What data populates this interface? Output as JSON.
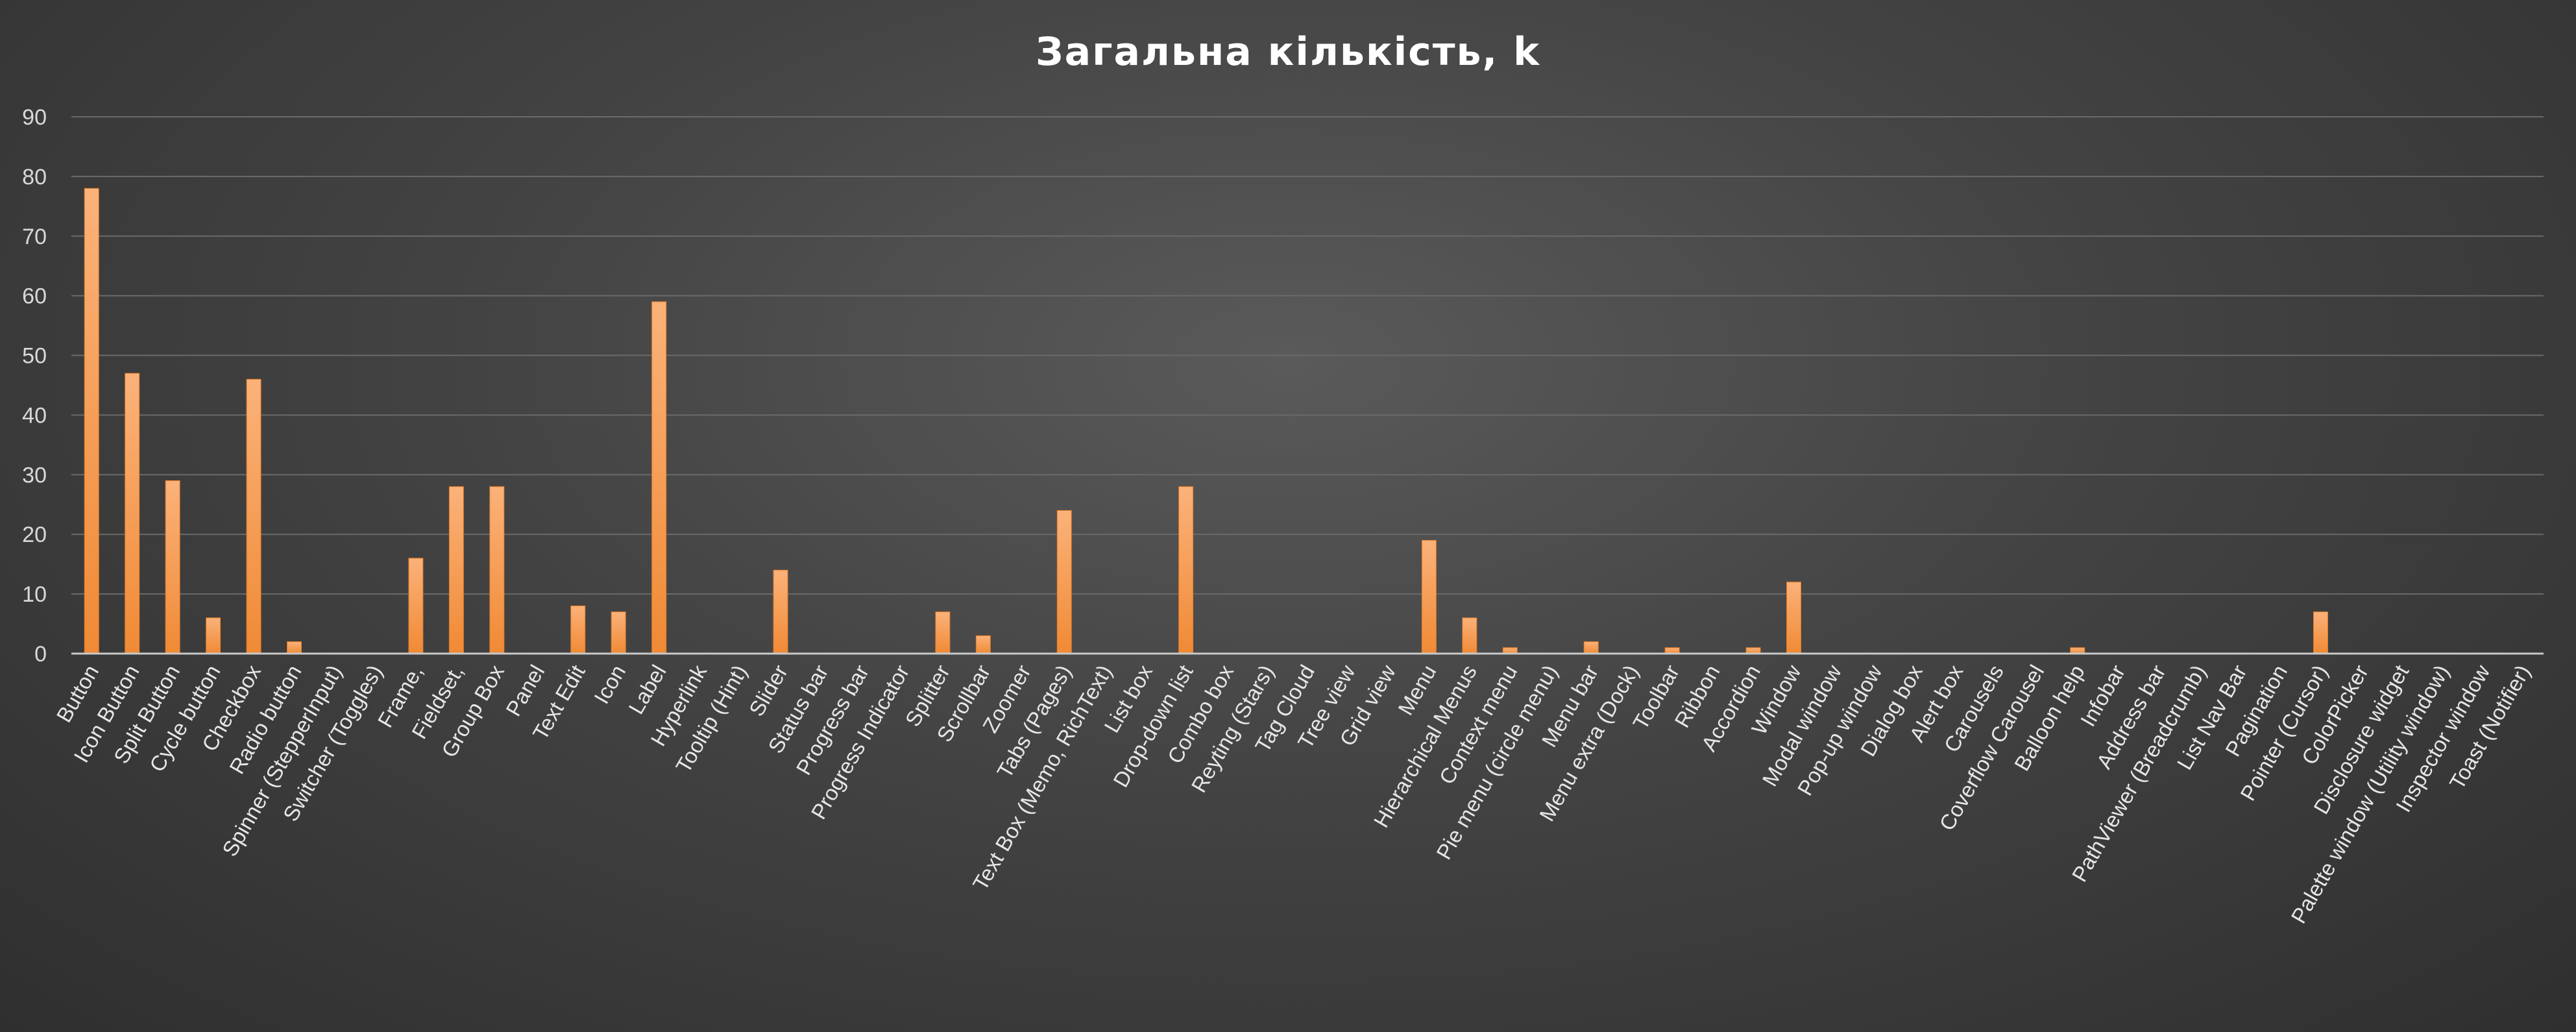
{
  "chart_data": {
    "type": "bar",
    "title": "Загальна кількість, k",
    "xlabel": "",
    "ylabel": "",
    "ylim": [
      0,
      90
    ],
    "yticks": [
      0,
      10,
      20,
      30,
      40,
      50,
      60,
      70,
      80,
      90
    ],
    "grid": true,
    "legend": "none",
    "bar_color": "#f79646",
    "bar_color_light": "#fbb27a",
    "categories": [
      "Button",
      "Icon Button",
      "Split Button",
      "Cycle button",
      "Checkbox",
      "Radio button",
      "Spinner (StepperInput)",
      "Switcher (Toggles)",
      "Frame,",
      "Fieldset,",
      "Group Box",
      "Panel",
      "Text Edit",
      "Icon",
      "Label",
      "Hyperlink",
      "Tooltip (Hint)",
      "Slider",
      "Status bar",
      "Progress bar",
      "Progress Indicator",
      "Splitter",
      "Scrollbar",
      "Zoomer",
      "Tabs (Pages)",
      "Text Box (Memo, RichText)",
      "List box",
      "Drop-down list",
      "Combo box",
      "Reyting (Stars)",
      "Tag Cloud",
      "Tree view",
      "Grid view",
      "Menu",
      "Hierarchical Menus",
      "Context menu",
      "Pie menu (circle menu)",
      "Menu bar",
      "Menu extra (Dock)",
      "Toolbar",
      "Ribbon",
      "Accordion",
      "Window",
      "Modal window",
      "Pop-up window",
      "Dialog box",
      "Alert box",
      "Carousels",
      "Coverflow Carousel",
      "Balloon help",
      "Infobar",
      "Address bar",
      "PathViewer (Breadcrumb)",
      "List Nav Bar",
      "Pagination",
      "Pointer (Cursor)",
      "ColorPicker",
      "Disclosure widget",
      "Palette window (Utility window)",
      "Inspector window",
      "Toast (Notifier)"
    ],
    "values": [
      78,
      47,
      29,
      6,
      46,
      2,
      0,
      0,
      16,
      28,
      28,
      0,
      8,
      7,
      59,
      0,
      0,
      14,
      0,
      0,
      0,
      7,
      3,
      0,
      24,
      0,
      0,
      28,
      0,
      0,
      0,
      0,
      0,
      19,
      6,
      1,
      0,
      2,
      0,
      1,
      0,
      1,
      12,
      0,
      0,
      0,
      0,
      0,
      0,
      1,
      0,
      0,
      0,
      0,
      0,
      7,
      0,
      0,
      0,
      0,
      0
    ]
  }
}
